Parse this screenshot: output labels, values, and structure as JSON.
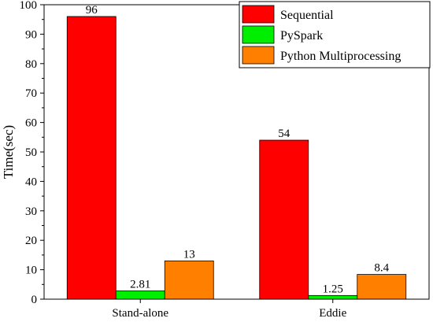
{
  "chart_data": {
    "type": "bar",
    "title": "",
    "xlabel": "",
    "ylabel": "Time(sec)",
    "ylim": [
      0,
      100
    ],
    "yticks": [
      0,
      10,
      20,
      30,
      40,
      50,
      60,
      70,
      80,
      90,
      100
    ],
    "categories": [
      "Stand-alone",
      "Eddie"
    ],
    "series": [
      {
        "name": "Sequential",
        "color": "#ff0000",
        "values": [
          96,
          54
        ],
        "labels": [
          "96",
          "54"
        ]
      },
      {
        "name": "PySpark",
        "color": "#00ee00",
        "values": [
          2.81,
          1.25
        ],
        "labels": [
          "2.81",
          "1.25"
        ]
      },
      {
        "name": "Python Multiprocessing",
        "color": "#ff7f00",
        "values": [
          13,
          8.4
        ],
        "labels": [
          "13",
          "8.4"
        ]
      }
    ],
    "legend_position": "top-right",
    "grid": false
  }
}
